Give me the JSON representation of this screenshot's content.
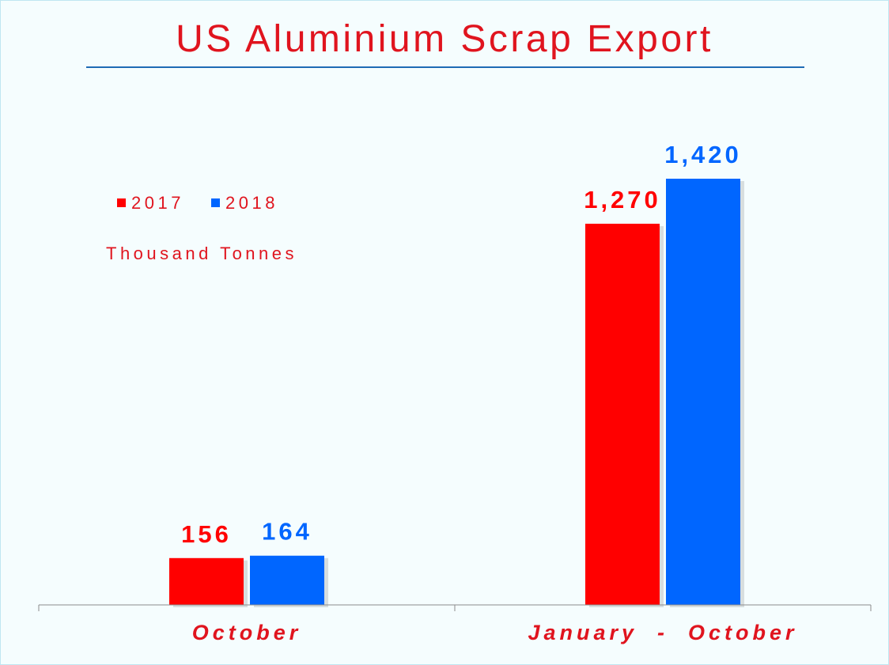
{
  "chart_data": {
    "type": "bar",
    "title": "US Aluminium Scrap Export",
    "unit_label": "Thousand Tonnes",
    "categories": [
      "October",
      "January  -  October"
    ],
    "series": [
      {
        "name": "2017",
        "values": [
          156,
          1270
        ],
        "labels": [
          "156",
          "1,270"
        ],
        "color": "#ff0000"
      },
      {
        "name": "2018",
        "values": [
          164,
          1420
        ],
        "labels": [
          "164",
          "1,420"
        ],
        "color": "#0066ff"
      }
    ],
    "ylim": [
      0,
      1420
    ],
    "grid": false,
    "legend": "top-left",
    "colors": {
      "title": "#e0141e",
      "title_rule": "#1f6bb5",
      "axis": "#8c8c8c",
      "category_text": "#e0141e",
      "unit_text": "#e0141e"
    }
  }
}
